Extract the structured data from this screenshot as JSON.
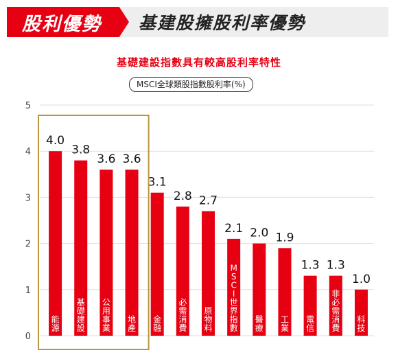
{
  "header": {
    "tag": "股利優勢",
    "title": "基建股擁股利率優勢"
  },
  "colors": {
    "accent": "#e60012",
    "bar": "#e60012",
    "highlight_border": "#b8963a",
    "grid": "#dddddd"
  },
  "chart_data": {
    "type": "bar",
    "title": "基礎建設指數具有較高股利率特性",
    "subtitle": "MSCI全球類股指數股利率(%)",
    "ylim": [
      0,
      5
    ],
    "yticks": [
      0,
      1,
      2,
      3,
      4,
      5
    ],
    "grid": true,
    "categories": [
      "能源",
      "基礎建設",
      "公用事業",
      "地產",
      "金融",
      "必需消費",
      "原物料",
      "MSCI世界指數",
      "醫療",
      "工業",
      "電信",
      "非必需消費",
      "科技"
    ],
    "values": [
      4.0,
      3.8,
      3.6,
      3.6,
      3.1,
      2.8,
      2.7,
      2.1,
      2.0,
      1.9,
      1.3,
      1.3,
      1.0
    ],
    "value_labels": [
      "4.0",
      "3.8",
      "3.6",
      "3.6",
      "3.1",
      "2.8",
      "2.7",
      "2.1",
      "2.0",
      "1.9",
      "1.3",
      "1.3",
      "1.0"
    ],
    "highlight_categories": [
      "能源",
      "基礎建設",
      "公用事業",
      "地產"
    ]
  }
}
